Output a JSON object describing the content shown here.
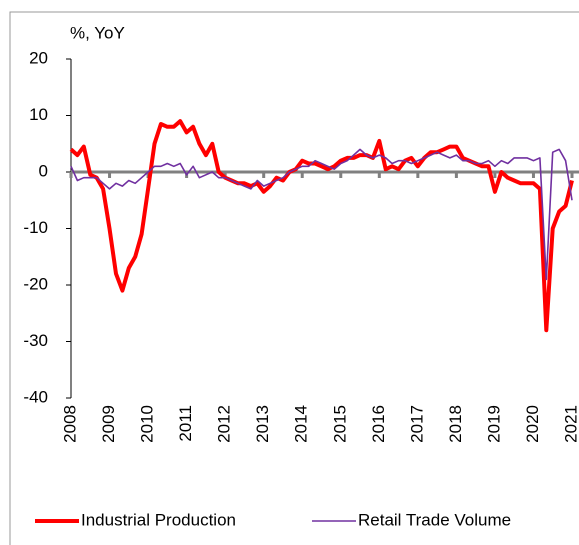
{
  "chart_data": {
    "type": "line",
    "y_axis_label": "%, YoY",
    "x": [
      2008.0,
      2008.167,
      2008.333,
      2008.5,
      2008.667,
      2008.833,
      2009.0,
      2009.167,
      2009.333,
      2009.5,
      2009.667,
      2009.833,
      2010.0,
      2010.167,
      2010.333,
      2010.5,
      2010.667,
      2010.833,
      2011.0,
      2011.167,
      2011.333,
      2011.5,
      2011.667,
      2011.833,
      2012.0,
      2012.167,
      2012.333,
      2012.5,
      2012.667,
      2012.833,
      2013.0,
      2013.167,
      2013.333,
      2013.5,
      2013.667,
      2013.833,
      2014.0,
      2014.167,
      2014.333,
      2014.5,
      2014.667,
      2014.833,
      2015.0,
      2015.167,
      2015.333,
      2015.5,
      2015.667,
      2015.833,
      2016.0,
      2016.167,
      2016.333,
      2016.5,
      2016.667,
      2016.833,
      2017.0,
      2017.167,
      2017.333,
      2017.5,
      2017.667,
      2017.833,
      2018.0,
      2018.167,
      2018.333,
      2018.5,
      2018.667,
      2018.833,
      2019.0,
      2019.167,
      2019.333,
      2019.5,
      2019.667,
      2019.833,
      2020.0,
      2020.167,
      2020.333,
      2020.5,
      2020.667,
      2020.833,
      2021.0
    ],
    "series": [
      {
        "name": "Industrial Production",
        "color": "#ff0000",
        "width": 4,
        "values": [
          4,
          3,
          4.5,
          -0.5,
          -1,
          -3,
          -10,
          -18,
          -21,
          -17,
          -15,
          -11,
          -3,
          5,
          8.5,
          8,
          8,
          9,
          7,
          8,
          5,
          3,
          5,
          0,
          -1,
          -1.5,
          -2,
          -2,
          -2.5,
          -2,
          -3.5,
          -2.5,
          -1,
          -1.5,
          0,
          0.5,
          2,
          1.5,
          1.5,
          1,
          0.5,
          1,
          2,
          2.5,
          2.5,
          3,
          3,
          2.5,
          5.5,
          0.5,
          1,
          0.5,
          2,
          2.5,
          1,
          2.5,
          3.5,
          3.5,
          4,
          4.5,
          4.5,
          2.5,
          2,
          1.5,
          1,
          1,
          -3.5,
          0,
          -1,
          -1.5,
          -2,
          -2,
          -2,
          -3,
          -28,
          -10,
          -7,
          -6,
          -1.5
        ]
      },
      {
        "name": "Retail Trade Volume",
        "color": "#7030a0",
        "width": 1.6,
        "values": [
          1,
          -1.5,
          -1,
          -1,
          -1,
          -2,
          -3,
          -2,
          -2.5,
          -1.5,
          -2,
          -1,
          0,
          1,
          1,
          1.5,
          1,
          1.5,
          -0.5,
          1,
          -1,
          -0.5,
          0,
          -1,
          -1,
          -1.5,
          -2,
          -2.5,
          -3,
          -1.5,
          -2.5,
          -2,
          -1.5,
          -1,
          0,
          0.5,
          1,
          1,
          2,
          1.5,
          1,
          0.5,
          1.5,
          2,
          3,
          4,
          3,
          2.5,
          3,
          2.5,
          1.5,
          2,
          2,
          1.5,
          2,
          2.5,
          3,
          3.5,
          3,
          2.5,
          3,
          2,
          2,
          1.5,
          1.5,
          2,
          1,
          2,
          1.5,
          2.5,
          2.5,
          2.5,
          2,
          2.5,
          -19,
          3.5,
          4,
          2,
          -5
        ]
      }
    ],
    "xlim": [
      2008,
      2021
    ],
    "xticks": [
      2008,
      2009,
      2010,
      2011,
      2012,
      2013,
      2014,
      2015,
      2016,
      2017,
      2018,
      2019,
      2020,
      2021
    ],
    "ylim": [
      -40,
      20
    ],
    "yticks": [
      -40,
      -30,
      -20,
      -10,
      0,
      10,
      20
    ],
    "legend": "bottom"
  }
}
